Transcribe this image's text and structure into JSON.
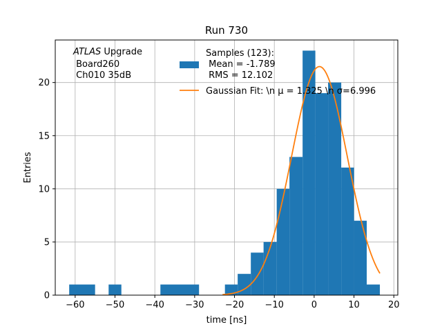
{
  "chart_data": {
    "type": "bar",
    "title": "Run 730",
    "xlabel": "time [ns]",
    "ylabel": "Entries",
    "xlim": [
      -65,
      21
    ],
    "ylim": [
      0,
      24
    ],
    "xticks": [
      -60,
      -50,
      -40,
      -30,
      -20,
      -10,
      0,
      10,
      20
    ],
    "xtick_labels": [
      "−60",
      "−50",
      "−40",
      "−30",
      "−20",
      "−10",
      "0",
      "10",
      "20"
    ],
    "yticks": [
      0,
      5,
      10,
      15,
      20
    ],
    "ytick_labels": [
      "0",
      "5",
      "10",
      "15",
      "20"
    ],
    "grid": true,
    "bar_color": "#1f77b4",
    "line_color": "#ff7f0e",
    "histogram": [
      {
        "x0": -61.5,
        "x1": -55.0,
        "count": 1
      },
      {
        "x0": -51.6,
        "x1": -48.4,
        "count": 1
      },
      {
        "x0": -38.6,
        "x1": -28.9,
        "count": 1
      },
      {
        "x0": -22.4,
        "x1": -19.2,
        "count": 1
      },
      {
        "x0": -19.2,
        "x1": -15.9,
        "count": 2
      },
      {
        "x0": -15.9,
        "x1": -12.7,
        "count": 4
      },
      {
        "x0": -12.7,
        "x1": -9.4,
        "count": 5
      },
      {
        "x0": -9.4,
        "x1": -6.2,
        "count": 10
      },
      {
        "x0": -6.2,
        "x1": -2.9,
        "count": 13
      },
      {
        "x0": -2.9,
        "x1": 0.3,
        "count": 23
      },
      {
        "x0": 0.3,
        "x1": 3.5,
        "count": 19
      },
      {
        "x0": 3.5,
        "x1": 6.8,
        "count": 20
      },
      {
        "x0": 6.8,
        "x1": 10.0,
        "count": 12
      },
      {
        "x0": 10.0,
        "x1": 13.2,
        "count": 7
      },
      {
        "x0": 13.2,
        "x1": 16.5,
        "count": 1
      }
    ],
    "fit": {
      "type": "gaussian",
      "amplitude": 21.5,
      "mu": 1.325,
      "sigma": 6.996,
      "x_range": [
        -23.0,
        16.5
      ]
    },
    "legend": {
      "placement": "top-right",
      "entries": [
        {
          "kind": "patch",
          "lines": [
            "Samples (123):",
            " Mean = -1.789",
            " RMS = 12.102"
          ]
        },
        {
          "kind": "line",
          "text": "Gaussian Fit: \\n μ = 1.325 \\n σ=6.996"
        }
      ]
    },
    "annotation": {
      "italic": "ATLAS",
      "lines": [
        " Upgrade",
        " Board260",
        " Ch010 35dB"
      ]
    }
  }
}
